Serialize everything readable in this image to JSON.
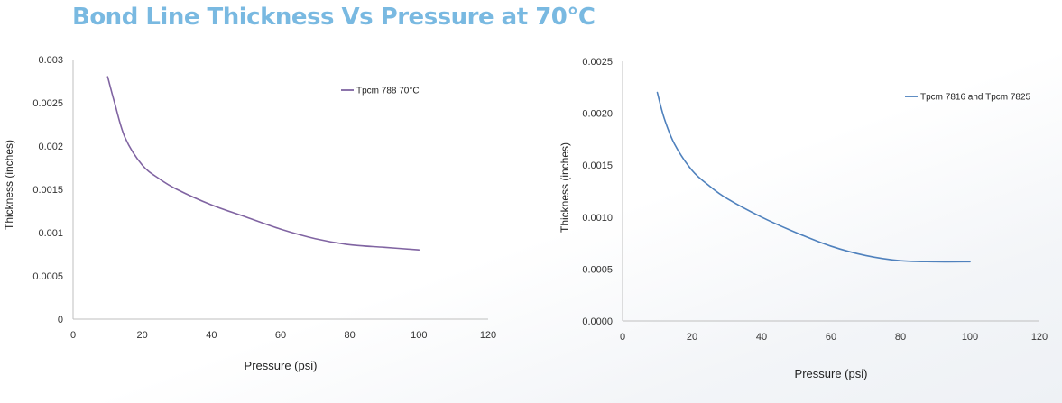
{
  "page": {
    "title": "Bond Line Thickness Vs Pressure at 70°C"
  },
  "chart_data": [
    {
      "type": "line",
      "title": "",
      "xlabel": "Pressure (psi)",
      "ylabel": "Thickness (inches)",
      "xlim": [
        0,
        120
      ],
      "ylim": [
        0,
        0.003
      ],
      "x_ticks": [
        "0",
        "20",
        "40",
        "60",
        "80",
        "100",
        "120"
      ],
      "y_ticks": [
        "0",
        "0.0005",
        "0.001",
        "0.0015",
        "0.002",
        "0.0025",
        "0.003"
      ],
      "grid": false,
      "legend_position": "top-right",
      "series": [
        {
          "name": "Tpcm 788 70°C",
          "color": "#8064a2",
          "x": [
            10,
            12,
            15,
            20,
            25,
            30,
            40,
            50,
            60,
            70,
            80,
            90,
            100
          ],
          "y": [
            0.0028,
            0.0025,
            0.0021,
            0.00178,
            0.00162,
            0.0015,
            0.00132,
            0.00118,
            0.00104,
            0.00093,
            0.00086,
            0.00083,
            0.0008
          ]
        }
      ]
    },
    {
      "type": "line",
      "title": "",
      "xlabel": "Pressure (psi)",
      "ylabel": "Thickness (inches)",
      "xlim": [
        0,
        120
      ],
      "ylim": [
        0,
        0.0025
      ],
      "x_ticks": [
        "0",
        "20",
        "40",
        "60",
        "80",
        "100",
        "120"
      ],
      "y_ticks": [
        "0.0000",
        "0.0005",
        "0.0010",
        "0.0015",
        "0.0020",
        "0.0025"
      ],
      "grid": false,
      "legend_position": "top-right",
      "series": [
        {
          "name": "Tpcm 7816 and Tpcm 7825",
          "color": "#4f81bd",
          "x": [
            10,
            12,
            15,
            20,
            25,
            30,
            40,
            50,
            60,
            70,
            80,
            90,
            100
          ],
          "y": [
            0.0022,
            0.00195,
            0.0017,
            0.00145,
            0.0013,
            0.00118,
            0.001,
            0.00085,
            0.00072,
            0.00063,
            0.00058,
            0.00057,
            0.00057
          ]
        }
      ]
    }
  ]
}
